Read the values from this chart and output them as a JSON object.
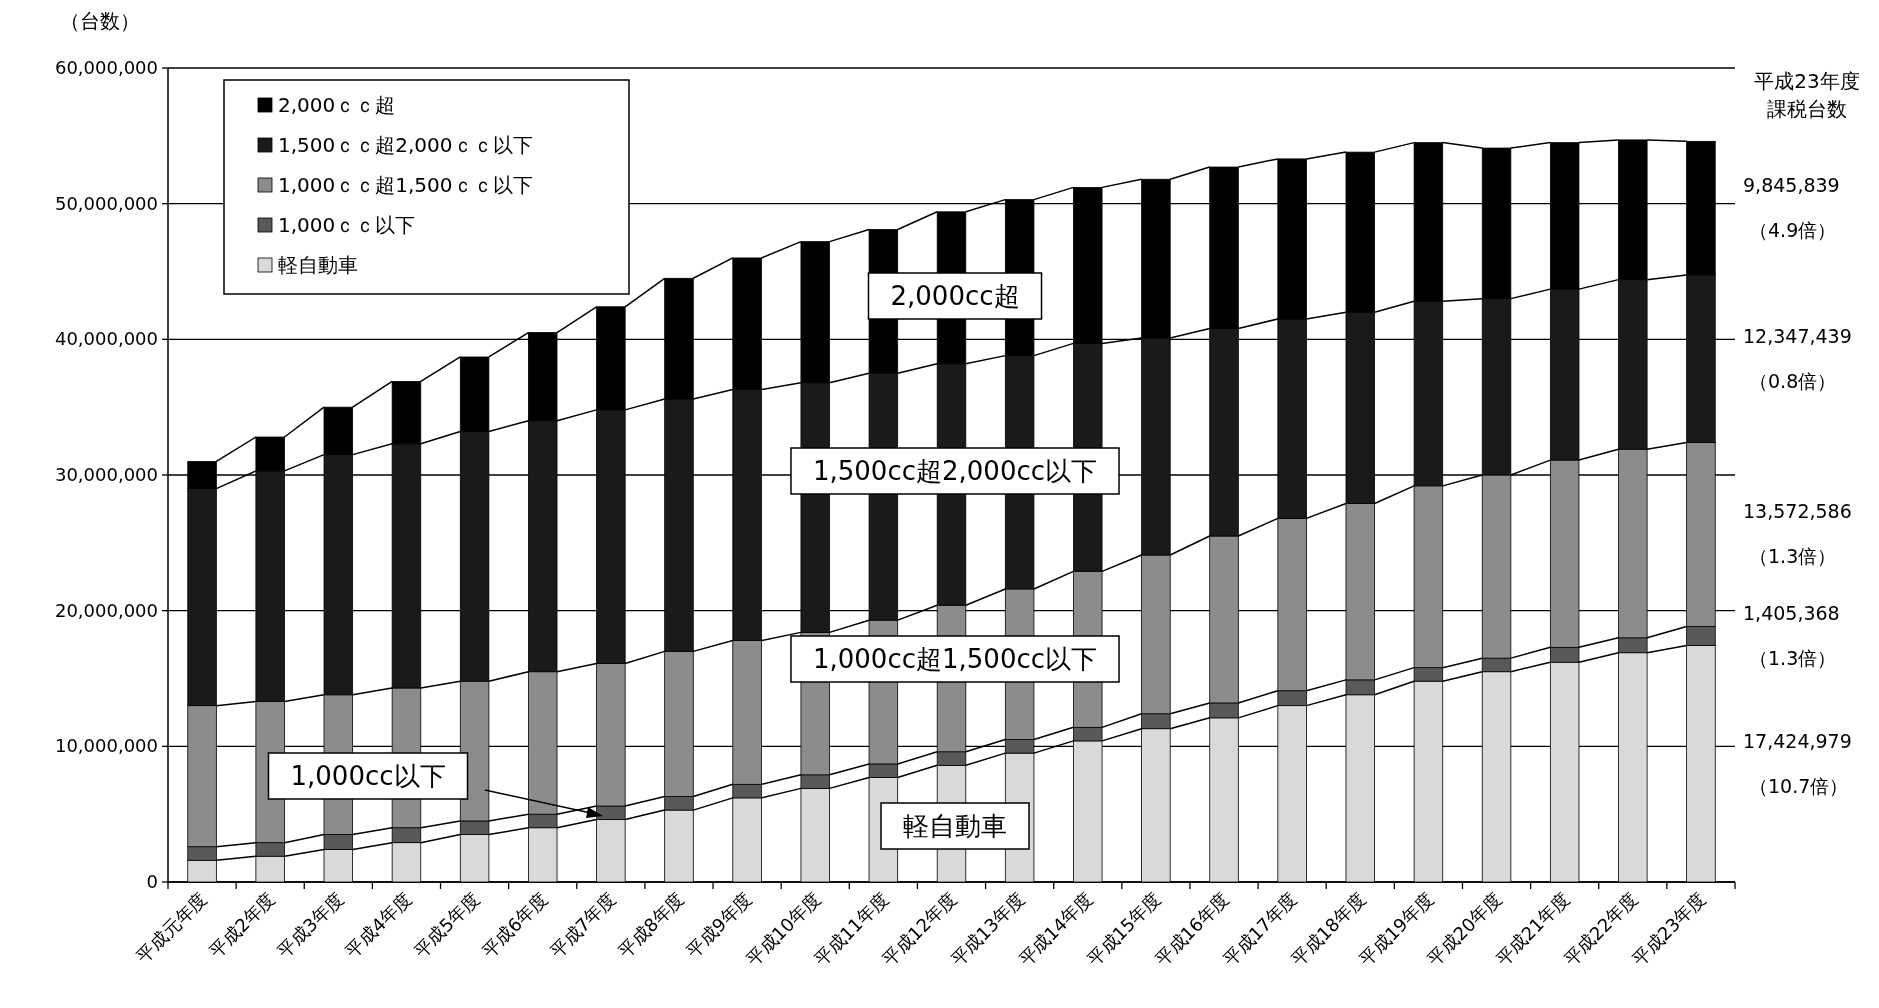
{
  "chart_data": {
    "type": "bar",
    "stacked": true,
    "ylabel": "（台数）",
    "categories": [
      "平成元年度",
      "平成2年度",
      "平成3年度",
      "平成4年度",
      "平成5年度",
      "平成6年度",
      "平成7年度",
      "平成8年度",
      "平成9年度",
      "平成10年度",
      "平成11年度",
      "平成12年度",
      "平成13年度",
      "平成14年度",
      "平成15年度",
      "平成16年度",
      "平成17年度",
      "平成18年度",
      "平成19年度",
      "平成20年度",
      "平成21年度",
      "平成22年度",
      "平成23年度"
    ],
    "series": [
      {
        "name": "軽自動車",
        "color": "#d9d9d9",
        "values": [
          1600000,
          1900000,
          2400000,
          2900000,
          3500000,
          4000000,
          4600000,
          5300000,
          6200000,
          6900000,
          7700000,
          8600000,
          9500000,
          10400000,
          11300000,
          12100000,
          13000000,
          13800000,
          14800000,
          15500000,
          16200000,
          16900000,
          17424979
        ],
        "value_labels": [
          null,
          null,
          null,
          null,
          null,
          null,
          null,
          null,
          null,
          null,
          null,
          null,
          null,
          null,
          null,
          null,
          null,
          null,
          null,
          null,
          null,
          null,
          "17,424,979\n（10.7倍）"
        ]
      },
      {
        "name": "1,000ｃｃ以下",
        "color": "#595959",
        "values": [
          1000000,
          1000000,
          1100000,
          1100000,
          1000000,
          1000000,
          1000000,
          1000000,
          1000000,
          1000000,
          1000000,
          1000000,
          1000000,
          1000000,
          1100000,
          1100000,
          1100000,
          1100000,
          1000000,
          1000000,
          1100000,
          1100000,
          1405368
        ],
        "value_labels": [
          null,
          null,
          null,
          null,
          null,
          null,
          null,
          null,
          null,
          null,
          null,
          null,
          null,
          null,
          null,
          null,
          null,
          null,
          null,
          null,
          null,
          null,
          "1,405,368\n（1.3倍）"
        ]
      },
      {
        "name": "1,000ｃｃ超1,500ｃｃ以下",
        "color": "#8c8c8c",
        "values": [
          10400000,
          10400000,
          10300000,
          10300000,
          10300000,
          10500000,
          10500000,
          10700000,
          10600000,
          10500000,
          10600000,
          10800000,
          11100000,
          11500000,
          11700000,
          12300000,
          12700000,
          13000000,
          13400000,
          13500000,
          13800000,
          13900000,
          13572586
        ],
        "value_labels": [
          null,
          null,
          null,
          null,
          null,
          null,
          null,
          null,
          null,
          null,
          null,
          null,
          null,
          null,
          null,
          null,
          null,
          null,
          null,
          null,
          null,
          null,
          "13,572,586\n（1.3倍）"
        ]
      },
      {
        "name": "1,500ｃｃ超2,000ｃｃ以下",
        "color": "#1a1a1a",
        "values": [
          16000000,
          17000000,
          17700000,
          18000000,
          18400000,
          18500000,
          18700000,
          18600000,
          18500000,
          18400000,
          18200000,
          17800000,
          17200000,
          16800000,
          16000000,
          15300000,
          14700000,
          14100000,
          13600000,
          13000000,
          12600000,
          12500000,
          12347439
        ],
        "value_labels": [
          null,
          null,
          null,
          null,
          null,
          null,
          null,
          null,
          null,
          null,
          null,
          null,
          null,
          null,
          null,
          null,
          null,
          null,
          null,
          null,
          null,
          null,
          "12,347,439\n（0.8倍）"
        ]
      },
      {
        "name": "2,000ｃｃ超",
        "color": "#000000",
        "values": [
          2000000,
          2500000,
          3500000,
          4600000,
          5500000,
          6500000,
          7600000,
          8900000,
          9700000,
          10400000,
          10600000,
          11200000,
          11500000,
          11500000,
          11700000,
          11900000,
          11800000,
          11800000,
          11700000,
          11100000,
          10800000,
          10300000,
          9845839
        ],
        "value_labels": [
          null,
          null,
          null,
          null,
          null,
          null,
          null,
          null,
          null,
          null,
          null,
          null,
          null,
          null,
          null,
          null,
          null,
          null,
          null,
          null,
          null,
          null,
          "9,845,839\n（4.9倍）"
        ]
      }
    ],
    "ylim": [
      0,
      60000000
    ],
    "yticks": [
      0,
      {
        "value": 10000000,
        "label": "10,000,000"
      },
      {
        "value": 20000000,
        "label": "20,000,000"
      },
      {
        "value": 30000000,
        "label": "30,000,000"
      },
      {
        "value": 40000000,
        "label": "40,000,000"
      },
      {
        "value": 50000000,
        "label": "50,000,000"
      },
      {
        "value": 60000000,
        "label": "60,000,000"
      }
    ],
    "grid": "y",
    "legend": "top left",
    "annotations": [
      "平成23年度",
      "課税台数",
      "2,000cc超",
      "1,500cc超2,000cc以下",
      "1,000cc超1,500cc以下",
      "1,000cc以下",
      "軽自動車"
    ]
  }
}
